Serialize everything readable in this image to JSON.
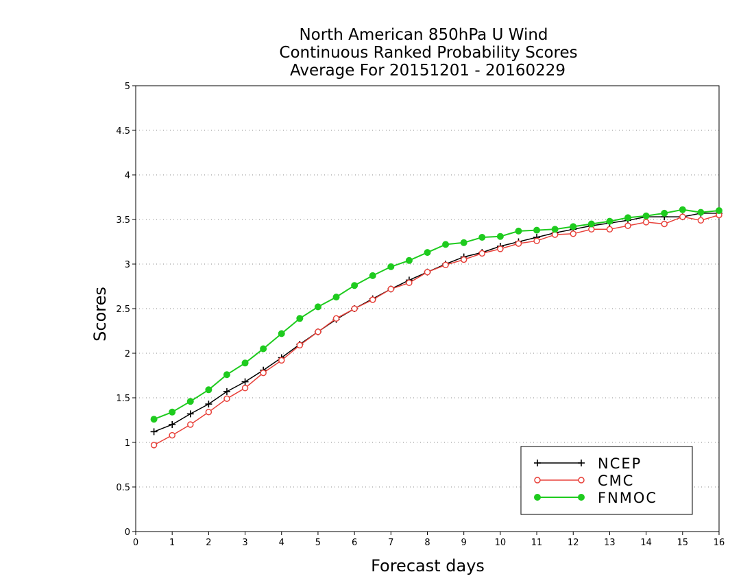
{
  "chart_data": {
    "type": "line",
    "title_lines": [
      "North American 850hPa U Wind",
      "Continuous Ranked Probability Scores",
      "Average For 20151201 - 20160229"
    ],
    "xlabel": "Forecast days",
    "ylabel": "Scores",
    "xlim": [
      0,
      16
    ],
    "ylim": [
      0,
      5
    ],
    "xticks": [
      "0",
      "1",
      "2",
      "3",
      "4",
      "5",
      "6",
      "7",
      "8",
      "9",
      "10",
      "11",
      "12",
      "13",
      "14",
      "15",
      "16"
    ],
    "yticks": [
      "0",
      "0.5",
      "1",
      "1.5",
      "2",
      "2.5",
      "3",
      "3.5",
      "4",
      "4.5",
      "5"
    ],
    "grid": "horizontal dotted",
    "legend_position": "bottom-right",
    "x": [
      0.5,
      1,
      1.5,
      2,
      2.5,
      3,
      3.5,
      4,
      4.5,
      5,
      5.5,
      6,
      6.5,
      7,
      7.5,
      8,
      8.5,
      9,
      9.5,
      10,
      10.5,
      11,
      11.5,
      12,
      12.5,
      13,
      13.5,
      14,
      14.5,
      15,
      15.5,
      16
    ],
    "series": [
      {
        "name": "NCEP",
        "color": "#000000",
        "marker": "plus",
        "values": [
          1.12,
          1.2,
          1.32,
          1.43,
          1.57,
          1.68,
          1.81,
          1.95,
          2.1,
          2.24,
          2.38,
          2.5,
          2.61,
          2.72,
          2.82,
          2.91,
          3.0,
          3.08,
          3.13,
          3.2,
          3.25,
          3.3,
          3.35,
          3.39,
          3.43,
          3.46,
          3.49,
          3.53,
          3.53,
          3.53,
          3.57,
          3.57
        ]
      },
      {
        "name": "CMC",
        "color": "#e8413a",
        "marker": "open-circle",
        "values": [
          0.97,
          1.08,
          1.2,
          1.34,
          1.49,
          1.61,
          1.78,
          1.92,
          2.09,
          2.24,
          2.39,
          2.5,
          2.6,
          2.72,
          2.79,
          2.91,
          2.99,
          3.05,
          3.12,
          3.17,
          3.23,
          3.26,
          3.33,
          3.34,
          3.39,
          3.39,
          3.43,
          3.47,
          3.45,
          3.53,
          3.49,
          3.55
        ]
      },
      {
        "name": "FNMOC",
        "color": "#1ecb1e",
        "marker": "filled-circle",
        "values": [
          1.26,
          1.34,
          1.46,
          1.59,
          1.76,
          1.89,
          2.05,
          2.22,
          2.39,
          2.52,
          2.63,
          2.76,
          2.87,
          2.97,
          3.04,
          3.13,
          3.22,
          3.24,
          3.3,
          3.31,
          3.37,
          3.38,
          3.39,
          3.42,
          3.45,
          3.48,
          3.52,
          3.54,
          3.57,
          3.61,
          3.58,
          3.6
        ]
      }
    ]
  }
}
